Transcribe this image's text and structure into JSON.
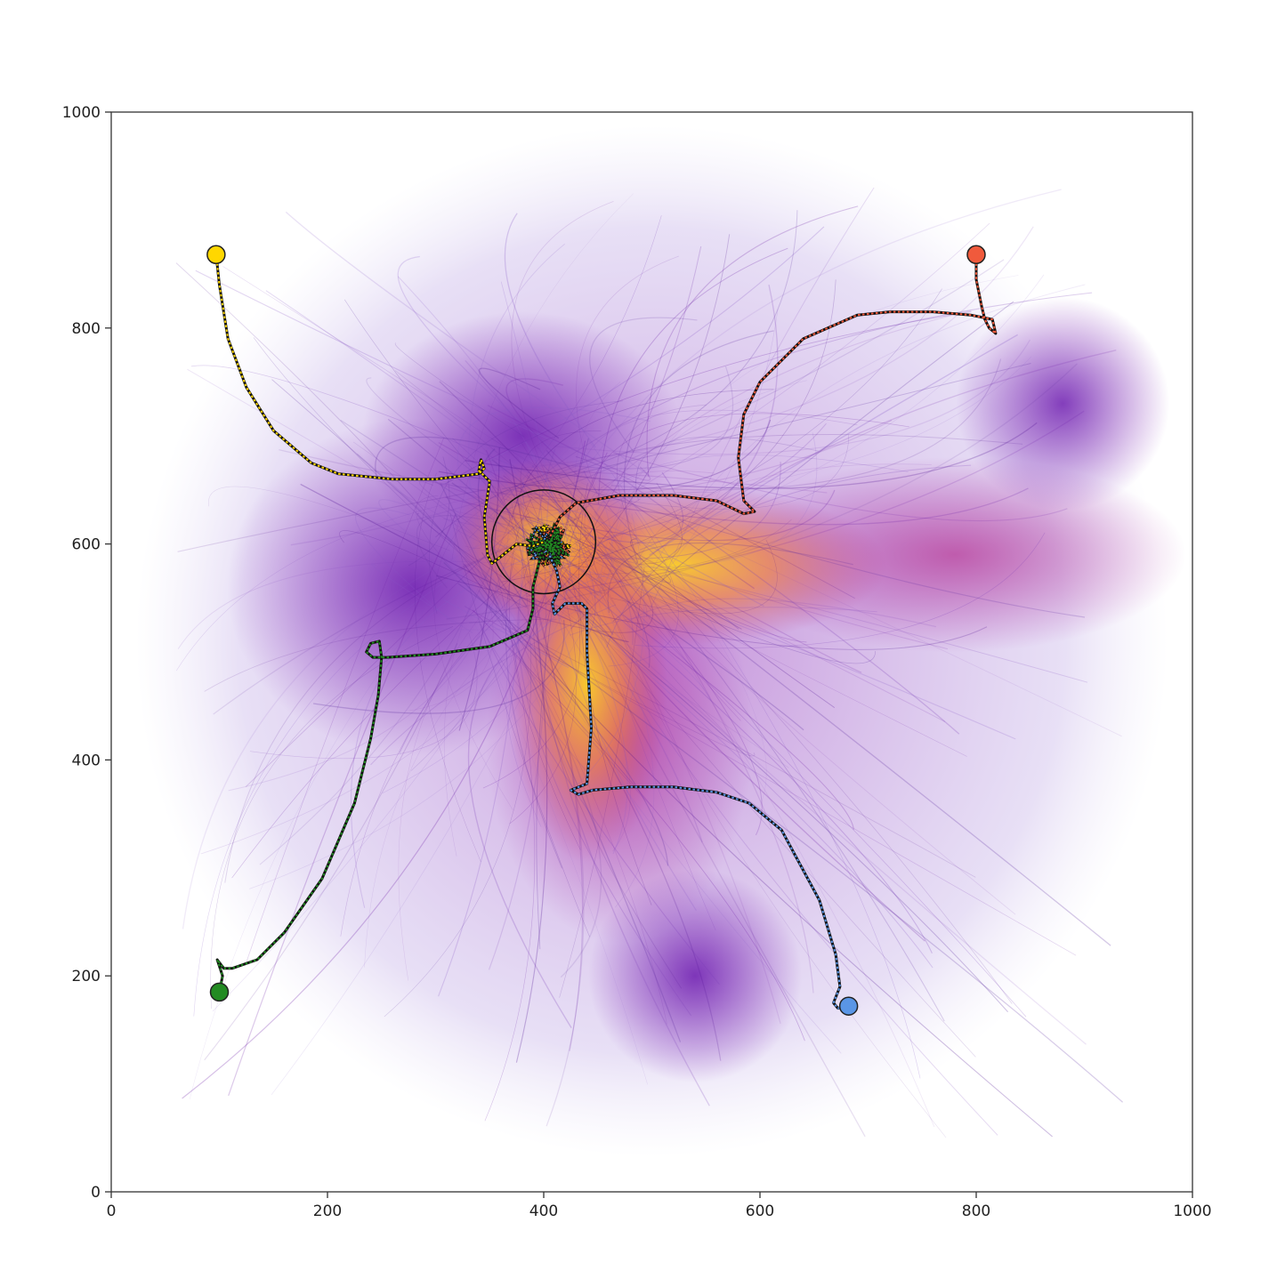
{
  "chart_data": {
    "type": "line",
    "title": "",
    "xlabel": "",
    "ylabel": "",
    "xlim": [
      0,
      1000
    ],
    "ylim": [
      0,
      1000
    ],
    "x_ticks": [
      0,
      200,
      400,
      600,
      800,
      1000
    ],
    "y_ticks": [
      0,
      200,
      400,
      600,
      800,
      1000
    ],
    "x_tick_labels": [
      "0",
      "200",
      "400",
      "600",
      "800",
      "1000"
    ],
    "y_tick_labels": [
      "0",
      "200",
      "400",
      "600",
      "800",
      "1000"
    ],
    "grid": false,
    "legend": "none",
    "background": "density of many faint trajectories (plasma colormap), concentrated toward the target",
    "target": {
      "x": 400,
      "y": 602,
      "radius": 48
    },
    "series": [
      {
        "color": "#FFD700",
        "start": [
          97,
          868
        ],
        "x": [
          97,
          100,
          108,
          125,
          150,
          185,
          210,
          260,
          300,
          340,
          345,
          342,
          340,
          350,
          345,
          348,
          352,
          360,
          375,
          390,
          400
        ],
        "y": [
          868,
          840,
          790,
          745,
          705,
          675,
          665,
          660,
          660,
          665,
          670,
          678,
          668,
          658,
          625,
          590,
          582,
          588,
          600,
          598,
          602
        ]
      },
      {
        "color": "#F05A3C",
        "start": [
          800,
          868
        ],
        "x": [
          800,
          800,
          805,
          808,
          812,
          818,
          815,
          795,
          760,
          720,
          690,
          640,
          600,
          585,
          580,
          585,
          595,
          585,
          560,
          520,
          470,
          430,
          415,
          405
        ],
        "y": [
          868,
          845,
          820,
          808,
          800,
          795,
          808,
          812,
          815,
          815,
          812,
          790,
          750,
          720,
          680,
          640,
          630,
          628,
          640,
          645,
          645,
          638,
          625,
          605
        ]
      },
      {
        "color": "#5A96E6",
        "start": [
          682,
          172
        ],
        "x": [
          682,
          672,
          668,
          674,
          670,
          655,
          620,
          590,
          560,
          520,
          480,
          445,
          432,
          425,
          440,
          444,
          440,
          440,
          435,
          420,
          410,
          408,
          415,
          412,
          405
        ],
        "y": [
          172,
          170,
          175,
          190,
          220,
          270,
          335,
          360,
          370,
          375,
          375,
          372,
          368,
          372,
          378,
          430,
          500,
          540,
          545,
          545,
          535,
          545,
          560,
          575,
          590
        ]
      },
      {
        "color": "#228B22",
        "start": [
          100,
          185
        ],
        "x": [
          100,
          103,
          98,
          104,
          112,
          135,
          160,
          195,
          225,
          240,
          247,
          250,
          248,
          240,
          236,
          242,
          255,
          300,
          350,
          385,
          390,
          390,
          395,
          400
        ],
        "y": [
          185,
          200,
          215,
          207,
          207,
          215,
          240,
          290,
          360,
          420,
          460,
          495,
          510,
          508,
          500,
          495,
          495,
          498,
          505,
          520,
          540,
          560,
          580,
          598
        ]
      }
    ]
  }
}
